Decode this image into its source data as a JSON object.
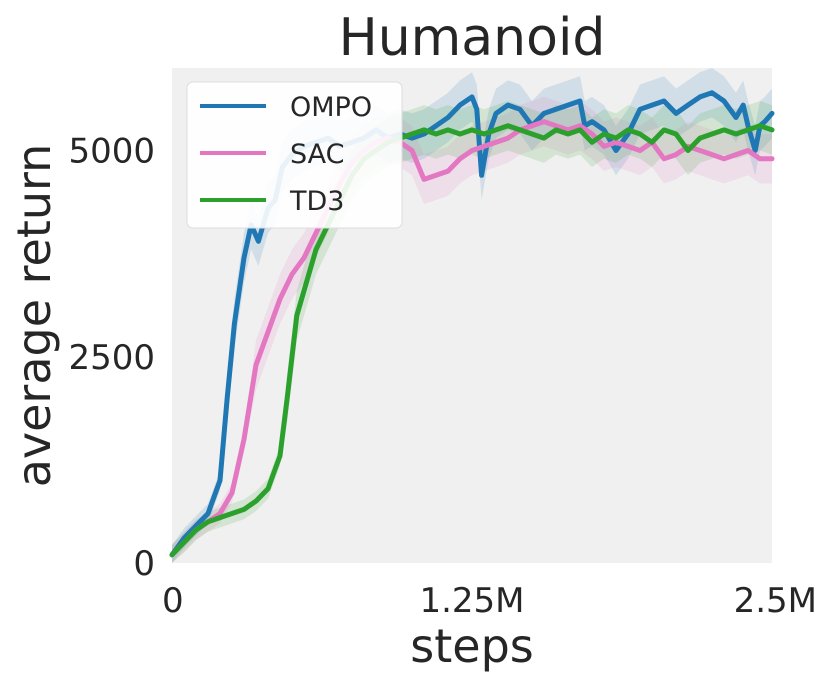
{
  "chart_data": {
    "type": "line",
    "title": "Humanoid",
    "xlabel": "steps",
    "ylabel": "average return",
    "xlim": [
      0,
      2500000
    ],
    "ylim": [
      0,
      6000
    ],
    "xticks": [
      {
        "value": 0,
        "label": "0"
      },
      {
        "value": 1250000,
        "label": "1.25M"
      },
      {
        "value": 2500000,
        "label": "2.5M"
      }
    ],
    "yticks": [
      {
        "value": 0,
        "label": "0"
      },
      {
        "value": 2500,
        "label": "2500"
      },
      {
        "value": 5000,
        "label": "5000"
      }
    ],
    "grid": false,
    "legend_position": "top-left",
    "background_color": "#f0f0f0",
    "series": [
      {
        "name": "OMPO",
        "color": "#1f77b4",
        "x": [
          0,
          50000,
          100000,
          150000,
          200000,
          230000,
          260000,
          300000,
          330000,
          360000,
          400000,
          430000,
          460000,
          500000,
          550000,
          600000,
          650000,
          700000,
          750000,
          800000,
          850000,
          900000,
          950000,
          1000000,
          1050000,
          1100000,
          1150000,
          1200000,
          1250000,
          1270000,
          1290000,
          1320000,
          1350000,
          1400000,
          1450000,
          1500000,
          1550000,
          1600000,
          1650000,
          1700000,
          1720000,
          1750000,
          1800000,
          1850000,
          1900000,
          1950000,
          2000000,
          2050000,
          2100000,
          2150000,
          2200000,
          2250000,
          2300000,
          2350000,
          2380000,
          2400000,
          2430000,
          2450000,
          2470000,
          2500000
        ],
        "values": [
          100,
          300,
          450,
          600,
          1000,
          2000,
          2900,
          3700,
          4100,
          3900,
          4300,
          4400,
          4800,
          4950,
          5050,
          5100,
          5150,
          5050,
          5100,
          5150,
          5250,
          5150,
          5200,
          5150,
          5200,
          5300,
          5400,
          5550,
          5650,
          5500,
          4700,
          5200,
          5450,
          5550,
          5500,
          5300,
          5450,
          5500,
          5550,
          5600,
          5300,
          5350,
          5250,
          5000,
          5200,
          5500,
          5550,
          5600,
          5450,
          5550,
          5650,
          5700,
          5600,
          5400,
          5550,
          5300,
          5000,
          5300,
          5350,
          5450
        ]
      },
      {
        "name": "SAC",
        "color": "#e377c2",
        "x": [
          0,
          50000,
          100000,
          150000,
          200000,
          250000,
          300000,
          350000,
          400000,
          450000,
          500000,
          550000,
          600000,
          650000,
          700000,
          750000,
          800000,
          850000,
          900000,
          950000,
          1000000,
          1050000,
          1100000,
          1150000,
          1200000,
          1250000,
          1300000,
          1350000,
          1400000,
          1450000,
          1500000,
          1550000,
          1600000,
          1650000,
          1700000,
          1750000,
          1800000,
          1850000,
          1900000,
          1950000,
          2000000,
          2050000,
          2100000,
          2150000,
          2200000,
          2250000,
          2300000,
          2350000,
          2400000,
          2450000,
          2500000
        ],
        "values": [
          100,
          250,
          400,
          500,
          600,
          850,
          1500,
          2400,
          2800,
          3200,
          3500,
          3700,
          4000,
          4300,
          4600,
          4850,
          5000,
          5100,
          5150,
          5100,
          5000,
          4650,
          4700,
          4750,
          4900,
          5000,
          5050,
          5100,
          5150,
          5250,
          5300,
          5350,
          5300,
          5250,
          5300,
          5200,
          5050,
          5100,
          5050,
          5000,
          5100,
          4900,
          4950,
          5050,
          5000,
          4950,
          4900,
          4950,
          5000,
          4900,
          4900
        ]
      },
      {
        "name": "TD3",
        "color": "#2ca02c",
        "x": [
          0,
          50000,
          100000,
          150000,
          200000,
          250000,
          300000,
          350000,
          400000,
          450000,
          480000,
          500000,
          520000,
          550000,
          600000,
          650000,
          700000,
          750000,
          800000,
          850000,
          900000,
          950000,
          1000000,
          1050000,
          1100000,
          1150000,
          1200000,
          1250000,
          1300000,
          1350000,
          1400000,
          1450000,
          1500000,
          1550000,
          1600000,
          1650000,
          1700000,
          1750000,
          1800000,
          1850000,
          1900000,
          1950000,
          2000000,
          2050000,
          2100000,
          2150000,
          2200000,
          2250000,
          2300000,
          2350000,
          2400000,
          2450000,
          2500000
        ],
        "values": [
          100,
          250,
          400,
          500,
          550,
          600,
          650,
          750,
          900,
          1300,
          2000,
          2500,
          3000,
          3300,
          3800,
          4100,
          4400,
          4700,
          4900,
          5000,
          5100,
          5150,
          5200,
          5250,
          5200,
          5250,
          5200,
          5250,
          5200,
          5250,
          5300,
          5250,
          5200,
          5150,
          5250,
          5200,
          5250,
          5100,
          5200,
          5150,
          5250,
          5200,
          5100,
          5250,
          5200,
          5000,
          5150,
          5200,
          5250,
          5200,
          5250,
          5300,
          5250
        ]
      }
    ]
  }
}
